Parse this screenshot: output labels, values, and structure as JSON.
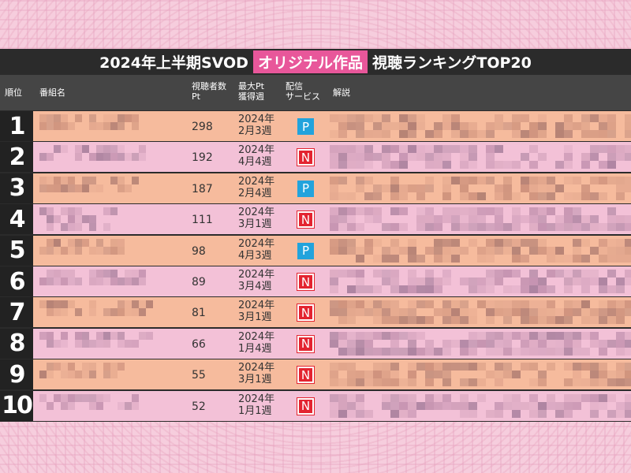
{
  "title": {
    "before": "2024年上半期SVOD",
    "highlight": "オリジナル作品",
    "after": "視聴ランキングTOP20"
  },
  "header": [
    "順位",
    "番組名",
    "視聴者数\nPt",
    "最大Pt\n獲得週",
    "配信\nサービス",
    "解説"
  ],
  "rows": [
    {
      "rank": "1",
      "points": "298",
      "week": "2024年\n2月3週",
      "service": "P"
    },
    {
      "rank": "2",
      "points": "192",
      "week": "2024年\n4月4週",
      "service": "N"
    },
    {
      "rank": "3",
      "points": "187",
      "week": "2024年\n2月4週",
      "service": "P"
    },
    {
      "rank": "4",
      "points": "111",
      "week": "2024年\n3月1週",
      "service": "N"
    },
    {
      "rank": "5",
      "points": "98",
      "week": "2024年\n4月3週",
      "service": "P"
    },
    {
      "rank": "6",
      "points": "89",
      "week": "2024年\n3月4週",
      "service": "N"
    },
    {
      "rank": "7",
      "points": "81",
      "week": "2024年\n3月1週",
      "service": "N"
    },
    {
      "rank": "8",
      "points": "66",
      "week": "2024年\n1月4週",
      "service": "N"
    },
    {
      "rank": "9",
      "points": "55",
      "week": "2024年\n3月1週",
      "service": "N"
    },
    {
      "rank": "10",
      "points": "52",
      "week": "2024年\n1月1週",
      "service": "N"
    }
  ]
}
